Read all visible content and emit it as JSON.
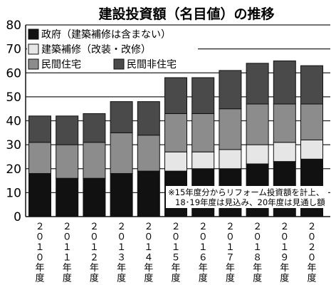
{
  "chart_data": {
    "type": "bar",
    "stacked": true,
    "title": "建設投資額（名目値）の推移",
    "categories": [
      [
        "２",
        "０",
        "１",
        "０",
        "年",
        "度"
      ],
      [
        "２",
        "０",
        "１",
        "１",
        "年",
        "度"
      ],
      [
        "２",
        "０",
        "１",
        "２",
        "年",
        "度"
      ],
      [
        "２",
        "０",
        "１",
        "３",
        "年",
        "度"
      ],
      [
        "２",
        "０",
        "１",
        "４",
        "年",
        "度"
      ],
      [
        "２",
        "０",
        "１",
        "５",
        "年",
        "度"
      ],
      [
        "２",
        "０",
        "１",
        "６",
        "年",
        "度"
      ],
      [
        "２",
        "０",
        "１",
        "７",
        "年",
        "度"
      ],
      [
        "２",
        "０",
        "１",
        "８",
        "年",
        "度"
      ],
      [
        "２",
        "０",
        "１",
        "９",
        "年",
        "度"
      ],
      [
        "２",
        "０",
        "２",
        "０",
        "年",
        "度"
      ]
    ],
    "series": [
      {
        "name": "政府（建築補修は含まない）",
        "color": "#111111",
        "values": [
          18,
          16,
          16,
          18,
          19,
          19,
          20,
          20,
          22,
          23,
          24
        ]
      },
      {
        "name": "建築補修（改装・改修）",
        "color": "#e6e6e6",
        "values": [
          0,
          0,
          0,
          0,
          0,
          8,
          7,
          8,
          8,
          8,
          8
        ]
      },
      {
        "name": "民間住宅",
        "color": "#8c8c8c",
        "values": [
          13,
          14,
          15,
          17,
          15,
          16,
          16,
          17,
          17,
          16,
          15
        ]
      },
      {
        "name": "民間非住宅",
        "color": "#4a4a4a",
        "values": [
          11,
          12,
          12,
          13,
          14,
          15,
          15,
          16,
          17,
          18,
          16
        ]
      }
    ],
    "ylim": [
      0,
      80
    ],
    "yticks": [
      0,
      10,
      20,
      30,
      40,
      50,
      60,
      70,
      80
    ],
    "ytick_labels": [
      "0",
      "10",
      "20",
      "30",
      "40",
      "50",
      "60",
      "70",
      "80"
    ],
    "grid": true,
    "legend": "top-left",
    "note": [
      "※15年度分からリフォーム投資額を計上、",
      "18･19年度は見込み、20年度は見通し額"
    ]
  }
}
